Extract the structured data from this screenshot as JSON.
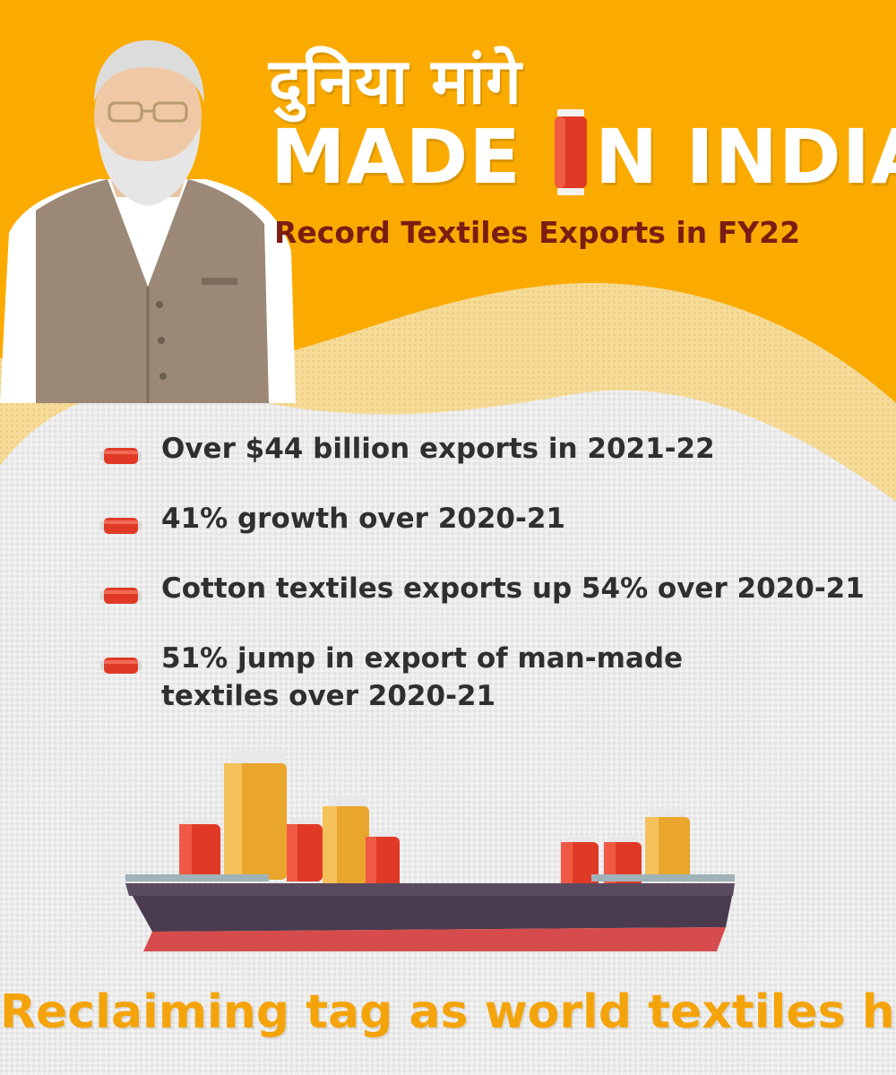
{
  "header": {
    "hindi_title": "दुनिया मांगे",
    "title_part1": "MADE ",
    "title_part2": "N INDIA'",
    "subtitle": "Record Textiles Exports in FY22"
  },
  "bullets": [
    {
      "text": "Over $44 billion exports in 2021-22"
    },
    {
      "text": "41% growth over 2020-21"
    },
    {
      "text": "Cotton textiles exports up 54% over 2020-21"
    },
    {
      "text": "51% jump in export of man-made textiles over 2020-21"
    }
  ],
  "footer": {
    "text": "Reclaiming tag as world textiles hub"
  },
  "colors": {
    "orange": "#fbab00",
    "light_yellow": "#f6dc98",
    "fabric": "#ececec",
    "maroon": "#7a1d12",
    "thread_red": "#e03a26",
    "thread_gold": "#e9a52c",
    "ship_hull": "#4a3b4f",
    "ship_keel": "#d64b4b"
  },
  "icons": {
    "bullet": "thread-spool-icon",
    "title_letter": "thread-spool-icon"
  }
}
